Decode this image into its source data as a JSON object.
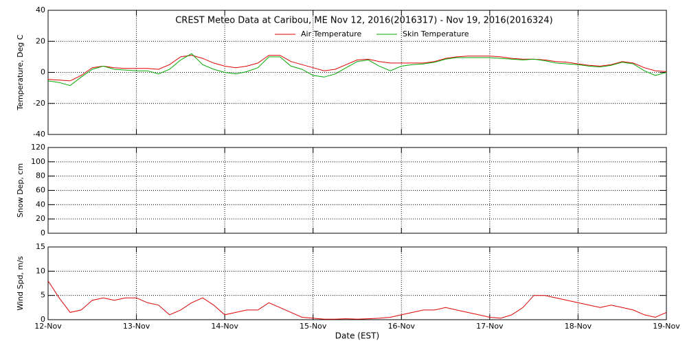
{
  "chart_data": [
    {
      "type": "line",
      "title": "CREST Meteo Data at Caribou, ME   Nov 12, 2016(2016317) - Nov 19, 2016(2016324)",
      "ylabel": "Temperature, Deg C",
      "ylim": [
        -40,
        40
      ],
      "yticks": [
        -40,
        -20,
        0,
        20,
        40
      ],
      "grid": true,
      "series": [
        {
          "name": "Air Temperature",
          "color": "#dd0000",
          "values": [
            -4.5,
            -5,
            -5.5,
            -2,
            3,
            4,
            3,
            2.5,
            2.5,
            2.5,
            2,
            5,
            10,
            11,
            9,
            6,
            4,
            3,
            4,
            6,
            11,
            11,
            7,
            5,
            3,
            1,
            2,
            5,
            8,
            8.5,
            7,
            6,
            6,
            6,
            6,
            7,
            9,
            10,
            10.5,
            10.5,
            10.5,
            10,
            9,
            8.5,
            8.5,
            8,
            7,
            6.5,
            5.5,
            4.5,
            4,
            5,
            7,
            6,
            3,
            1,
            0.5
          ]
        },
        {
          "name": "Skin Temperature",
          "color": "#00aa00",
          "values": [
            -5.5,
            -6.5,
            -8.5,
            -3,
            2,
            4,
            2,
            1.5,
            1,
            1,
            -1,
            2,
            8,
            12,
            5,
            2,
            0,
            -1,
            0.5,
            3,
            10,
            10,
            4,
            2,
            -2,
            -3,
            -1,
            3,
            7,
            8,
            4,
            1,
            4,
            5,
            5.5,
            6.5,
            8.5,
            9.5,
            9.5,
            9.5,
            9.5,
            9,
            8.5,
            8,
            8.5,
            7.5,
            6,
            5.5,
            5,
            4,
            3.5,
            4.5,
            6.5,
            5.5,
            1,
            -2,
            0
          ]
        }
      ]
    },
    {
      "type": "line",
      "ylabel": "Snow Dep, cm",
      "ylim": [
        0,
        120
      ],
      "yticks": [
        0,
        20,
        40,
        60,
        80,
        100,
        120
      ],
      "grid": true,
      "series": []
    },
    {
      "type": "line",
      "ylabel": "Wind Spd, m/s",
      "xlabel": "Date (EST)",
      "ylim": [
        0,
        15
      ],
      "yticks": [
        0,
        5,
        10,
        15
      ],
      "grid": true,
      "categories": [
        "12-Nov",
        null,
        null,
        null,
        null,
        null,
        null,
        null,
        "13-Nov",
        null,
        null,
        null,
        null,
        null,
        null,
        null,
        "14-Nov",
        null,
        null,
        null,
        null,
        null,
        null,
        null,
        "15-Nov",
        null,
        null,
        null,
        null,
        null,
        null,
        null,
        "16-Nov",
        null,
        null,
        null,
        null,
        null,
        null,
        null,
        "17-Nov",
        null,
        null,
        null,
        null,
        null,
        null,
        null,
        "18-Nov",
        null,
        null,
        null,
        null,
        null,
        null,
        null,
        "19-Nov"
      ],
      "series": [
        {
          "name": "Wind Speed",
          "color": "#dd0000",
          "values": [
            8,
            4.5,
            1.5,
            2,
            4,
            4.5,
            4,
            4.5,
            4.5,
            3.5,
            3,
            1,
            2,
            3.5,
            4.5,
            3,
            1,
            1.5,
            2,
            2,
            3.5,
            2.5,
            1.5,
            0.5,
            0.3,
            0.1,
            0.1,
            0.2,
            0.1,
            0.2,
            0.3,
            0.5,
            1,
            1.5,
            2,
            2,
            2.5,
            2,
            1.5,
            1,
            0.5,
            0.3,
            1,
            2.5,
            5,
            5,
            4.5,
            4,
            3.5,
            3,
            2.5,
            3,
            2.5,
            2,
            1,
            0.5,
            1.5
          ]
        }
      ]
    }
  ]
}
